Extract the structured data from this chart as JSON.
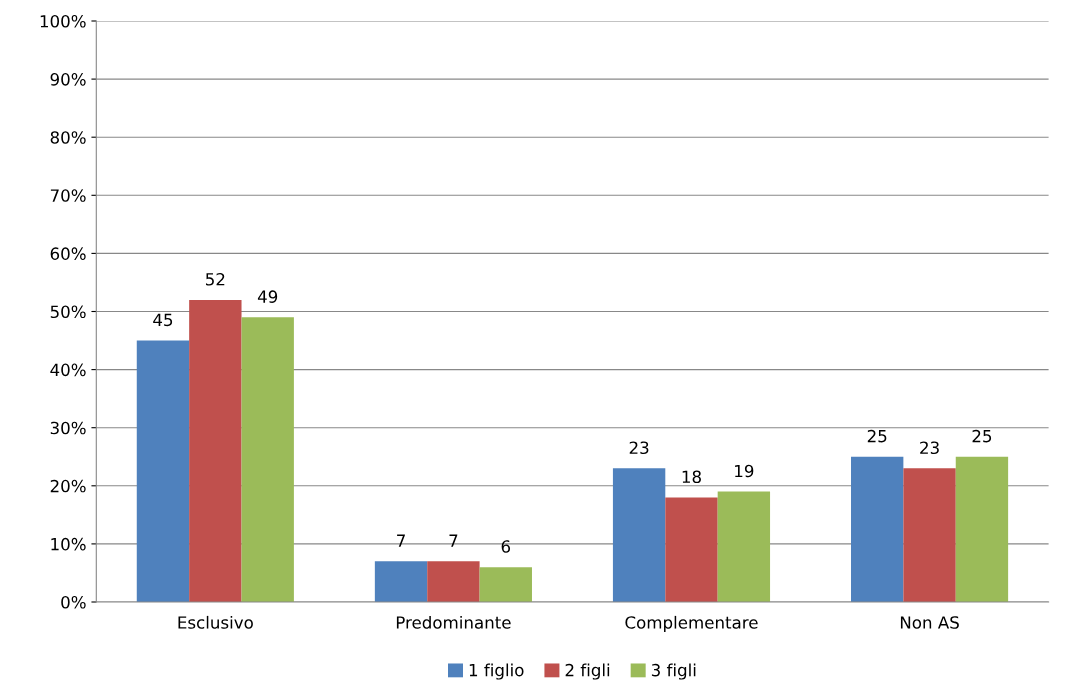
{
  "chart_data": {
    "type": "bar",
    "categories": [
      "Esclusivo",
      "Predominante",
      "Complementare",
      "Non AS"
    ],
    "series": [
      {
        "name": "1 figlio",
        "color": "#4f81bd",
        "values": [
          45,
          7,
          23,
          25
        ]
      },
      {
        "name": "2 figli",
        "color": "#c0504d",
        "values": [
          52,
          7,
          18,
          23
        ]
      },
      {
        "name": "3 figli",
        "color": "#9bbb59",
        "values": [
          49,
          6,
          19,
          25
        ]
      }
    ],
    "ylim": [
      0,
      100
    ],
    "yticks": [
      {
        "value": 0,
        "label": "0%"
      },
      {
        "value": 10,
        "label": "10%"
      },
      {
        "value": 20,
        "label": "20%"
      },
      {
        "value": 30,
        "label": "30%"
      },
      {
        "value": 40,
        "label": "40%"
      },
      {
        "value": 50,
        "label": "50%"
      },
      {
        "value": 60,
        "label": "60%"
      },
      {
        "value": 70,
        "label": "70%"
      },
      {
        "value": 80,
        "label": "80%"
      },
      {
        "value": 90,
        "label": "90%"
      },
      {
        "value": 100,
        "label": "100%"
      }
    ],
    "grid": "y",
    "legend": "bottom",
    "data_labels": true
  }
}
